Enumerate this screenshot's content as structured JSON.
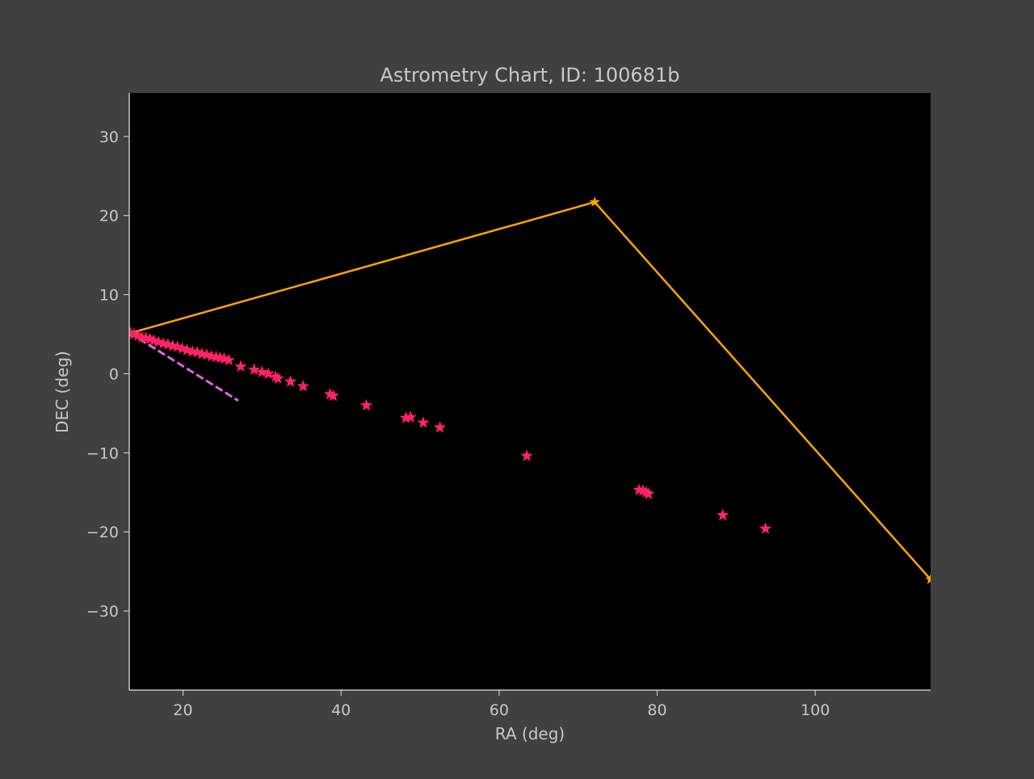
{
  "chart_data": {
    "type": "scatter",
    "title": "Astrometry Chart, ID: 100681b",
    "xlabel": "RA (deg)",
    "ylabel": "DEC (deg)",
    "xlim": [
      13.2,
      114.6
    ],
    "ylim": [
      -40.0,
      35.5
    ],
    "xticks": [
      20,
      40,
      60,
      80,
      100
    ],
    "yticks": [
      -30,
      -20,
      -10,
      0,
      10,
      20,
      30
    ],
    "xtick_labels": [
      "20",
      "40",
      "60",
      "80",
      "100"
    ],
    "ytick_labels": [
      "−30",
      "−20",
      "−10",
      "0",
      "10",
      "20",
      "30"
    ],
    "grid": false,
    "legend": "none",
    "colors": {
      "figure_bg": "#404040",
      "plot_bg": "#000000",
      "axis": "#c8c8c8",
      "text": "#c8c8c8"
    },
    "series": [
      {
        "style": "line-star",
        "color": "#ffa500",
        "x": [
          13.2,
          72.1,
          114.6
        ],
        "y": [
          5.1,
          21.7,
          -26.0
        ]
      },
      {
        "style": "dashed-line",
        "color": "#dd66dd",
        "x": [
          13.2,
          27.0
        ],
        "y": [
          5.2,
          -3.4
        ]
      },
      {
        "style": "stars",
        "color": "#ff2266",
        "x": [
          13.3,
          13.8,
          14.3,
          14.8,
          15.3,
          15.8,
          16.3,
          16.9,
          17.5,
          18.1,
          18.7,
          19.3,
          19.9,
          20.5,
          21.2,
          21.8,
          22.4,
          23.0,
          23.6,
          24.2,
          24.7,
          25.2,
          25.8,
          27.3,
          29.0,
          30.0,
          30.8,
          31.7,
          32.0,
          33.6,
          35.2,
          38.6,
          39.0,
          43.2,
          48.2,
          48.8,
          50.4,
          52.5,
          63.5,
          77.7,
          78.2,
          78.6,
          78.9,
          88.3,
          93.7
        ],
        "y": [
          5.2,
          5.0,
          4.8,
          4.6,
          4.5,
          4.4,
          4.2,
          4.0,
          3.8,
          3.7,
          3.5,
          3.4,
          3.2,
          3.0,
          2.8,
          2.7,
          2.5,
          2.4,
          2.2,
          2.1,
          2.0,
          1.9,
          1.7,
          0.9,
          0.5,
          0.2,
          0.0,
          -0.4,
          -0.6,
          -1.0,
          -1.6,
          -2.6,
          -2.8,
          -4.0,
          -5.6,
          -5.5,
          -6.2,
          -6.8,
          -10.4,
          -14.7,
          -14.8,
          -15.0,
          -15.2,
          -17.9,
          -19.6
        ]
      }
    ]
  }
}
